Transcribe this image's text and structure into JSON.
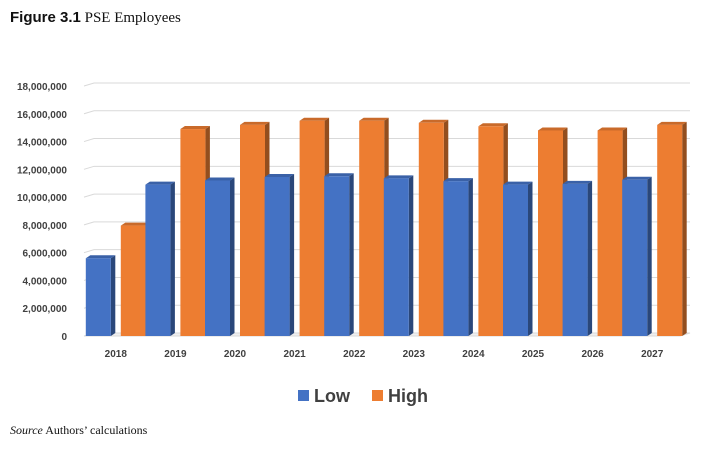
{
  "figure": {
    "label": "Figure 3.1",
    "name": "PSE Employees"
  },
  "source": {
    "label": "Source",
    "text": "Authors’ calculations"
  },
  "chart_data": {
    "type": "bar",
    "title": "",
    "xlabel": "",
    "ylabel": "",
    "categories": [
      "2018",
      "2019",
      "2020",
      "2021",
      "2022",
      "2023",
      "2024",
      "2025",
      "2026",
      "2027"
    ],
    "series": [
      {
        "name": "Low",
        "color": "#4472C4",
        "values": [
          5600000,
          10900000,
          11200000,
          11450000,
          11500000,
          11350000,
          11150000,
          10900000,
          10950000,
          11250000
        ]
      },
      {
        "name": "High",
        "color": "#ED7D31",
        "values": [
          7950000,
          14900000,
          15200000,
          15500000,
          15500000,
          15350000,
          15100000,
          14800000,
          14800000,
          15200000
        ]
      }
    ],
    "ylim": [
      0,
      18000000
    ],
    "yticks": [
      0,
      2000000,
      4000000,
      6000000,
      8000000,
      10000000,
      12000000,
      14000000,
      16000000,
      18000000
    ],
    "ytick_labels": [
      "0",
      "2,000,000",
      "4,000,000",
      "6,000,000",
      "8,000,000",
      "10,000,000",
      "12,000,000",
      "14,000,000",
      "16,000,000",
      "18,000,000"
    ],
    "grid": true,
    "legend": "bottom-center",
    "style": "3d-columns"
  }
}
